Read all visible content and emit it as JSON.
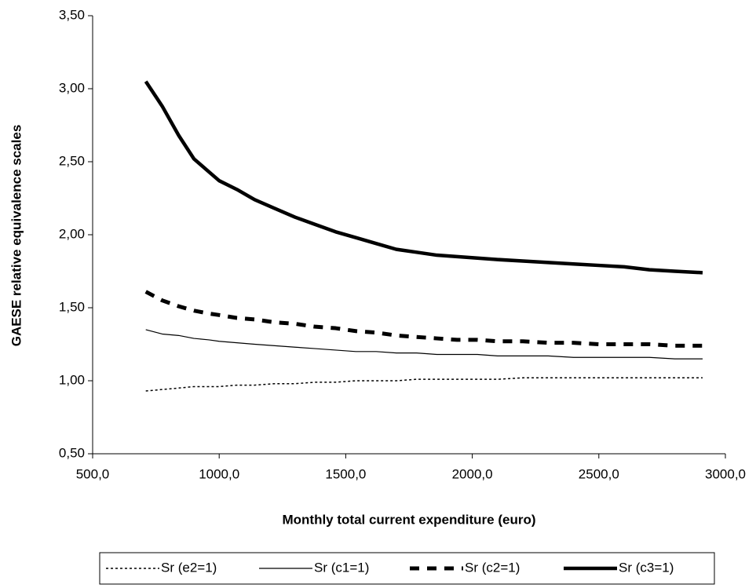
{
  "chart_data": {
    "type": "line",
    "x_label": "Monthly total current expenditure (euro)",
    "y_label": "GAESE relative equivalence scales",
    "x": [
      710,
      775,
      840,
      900,
      960,
      1000,
      1070,
      1140,
      1220,
      1300,
      1380,
      1460,
      1540,
      1620,
      1700,
      1780,
      1860,
      1940,
      2020,
      2100,
      2200,
      2300,
      2400,
      2500,
      2600,
      2700,
      2800,
      2910
    ],
    "series": [
      {
        "name": "Sr (e2=1)",
        "color": "#000000",
        "style": "dotted",
        "values": [
          0.93,
          0.94,
          0.95,
          0.96,
          0.96,
          0.96,
          0.97,
          0.97,
          0.98,
          0.98,
          0.99,
          0.99,
          1.0,
          1.0,
          1.0,
          1.01,
          1.01,
          1.01,
          1.01,
          1.01,
          1.02,
          1.02,
          1.02,
          1.02,
          1.02,
          1.02,
          1.02,
          1.02
        ]
      },
      {
        "name": "Sr (c1=1)",
        "color": "#000000",
        "style": "thin",
        "values": [
          1.35,
          1.32,
          1.31,
          1.29,
          1.28,
          1.27,
          1.26,
          1.25,
          1.24,
          1.23,
          1.22,
          1.21,
          1.2,
          1.2,
          1.19,
          1.19,
          1.18,
          1.18,
          1.18,
          1.17,
          1.17,
          1.17,
          1.16,
          1.16,
          1.16,
          1.16,
          1.15,
          1.15
        ]
      },
      {
        "name": "Sr (c2=1)",
        "color": "#000000",
        "style": "dashed",
        "values": [
          1.61,
          1.55,
          1.51,
          1.48,
          1.46,
          1.45,
          1.43,
          1.42,
          1.4,
          1.39,
          1.37,
          1.36,
          1.34,
          1.33,
          1.31,
          1.3,
          1.29,
          1.28,
          1.28,
          1.27,
          1.27,
          1.26,
          1.26,
          1.25,
          1.25,
          1.25,
          1.24,
          1.24
        ]
      },
      {
        "name": "Sr (c3=1)",
        "color": "#000000",
        "style": "thick",
        "values": [
          3.05,
          2.88,
          2.68,
          2.52,
          2.43,
          2.37,
          2.31,
          2.24,
          2.18,
          2.12,
          2.07,
          2.02,
          1.98,
          1.94,
          1.9,
          1.88,
          1.86,
          1.85,
          1.84,
          1.83,
          1.82,
          1.81,
          1.8,
          1.79,
          1.78,
          1.76,
          1.75,
          1.74
        ]
      }
    ],
    "xlim": [
      500,
      3000
    ],
    "xticks": [
      {
        "value": 500,
        "label": "500,0"
      },
      {
        "value": 1000,
        "label": "1000,0"
      },
      {
        "value": 1500,
        "label": "1500,0"
      },
      {
        "value": 2000,
        "label": "2000,0"
      },
      {
        "value": 2500,
        "label": "2500,0"
      },
      {
        "value": 3000,
        "label": "3000,0"
      }
    ],
    "ylim": [
      0.5,
      3.5
    ],
    "yticks": [
      {
        "value": 0.5,
        "label": "0,50"
      },
      {
        "value": 1.0,
        "label": "1,00"
      },
      {
        "value": 1.5,
        "label": "1,50"
      },
      {
        "value": 2.0,
        "label": "2,00"
      },
      {
        "value": 2.5,
        "label": "2,50"
      },
      {
        "value": 3.0,
        "label": "3,00"
      },
      {
        "value": 3.5,
        "label": "3,50"
      }
    ],
    "grid": false,
    "legend": "bottom"
  }
}
